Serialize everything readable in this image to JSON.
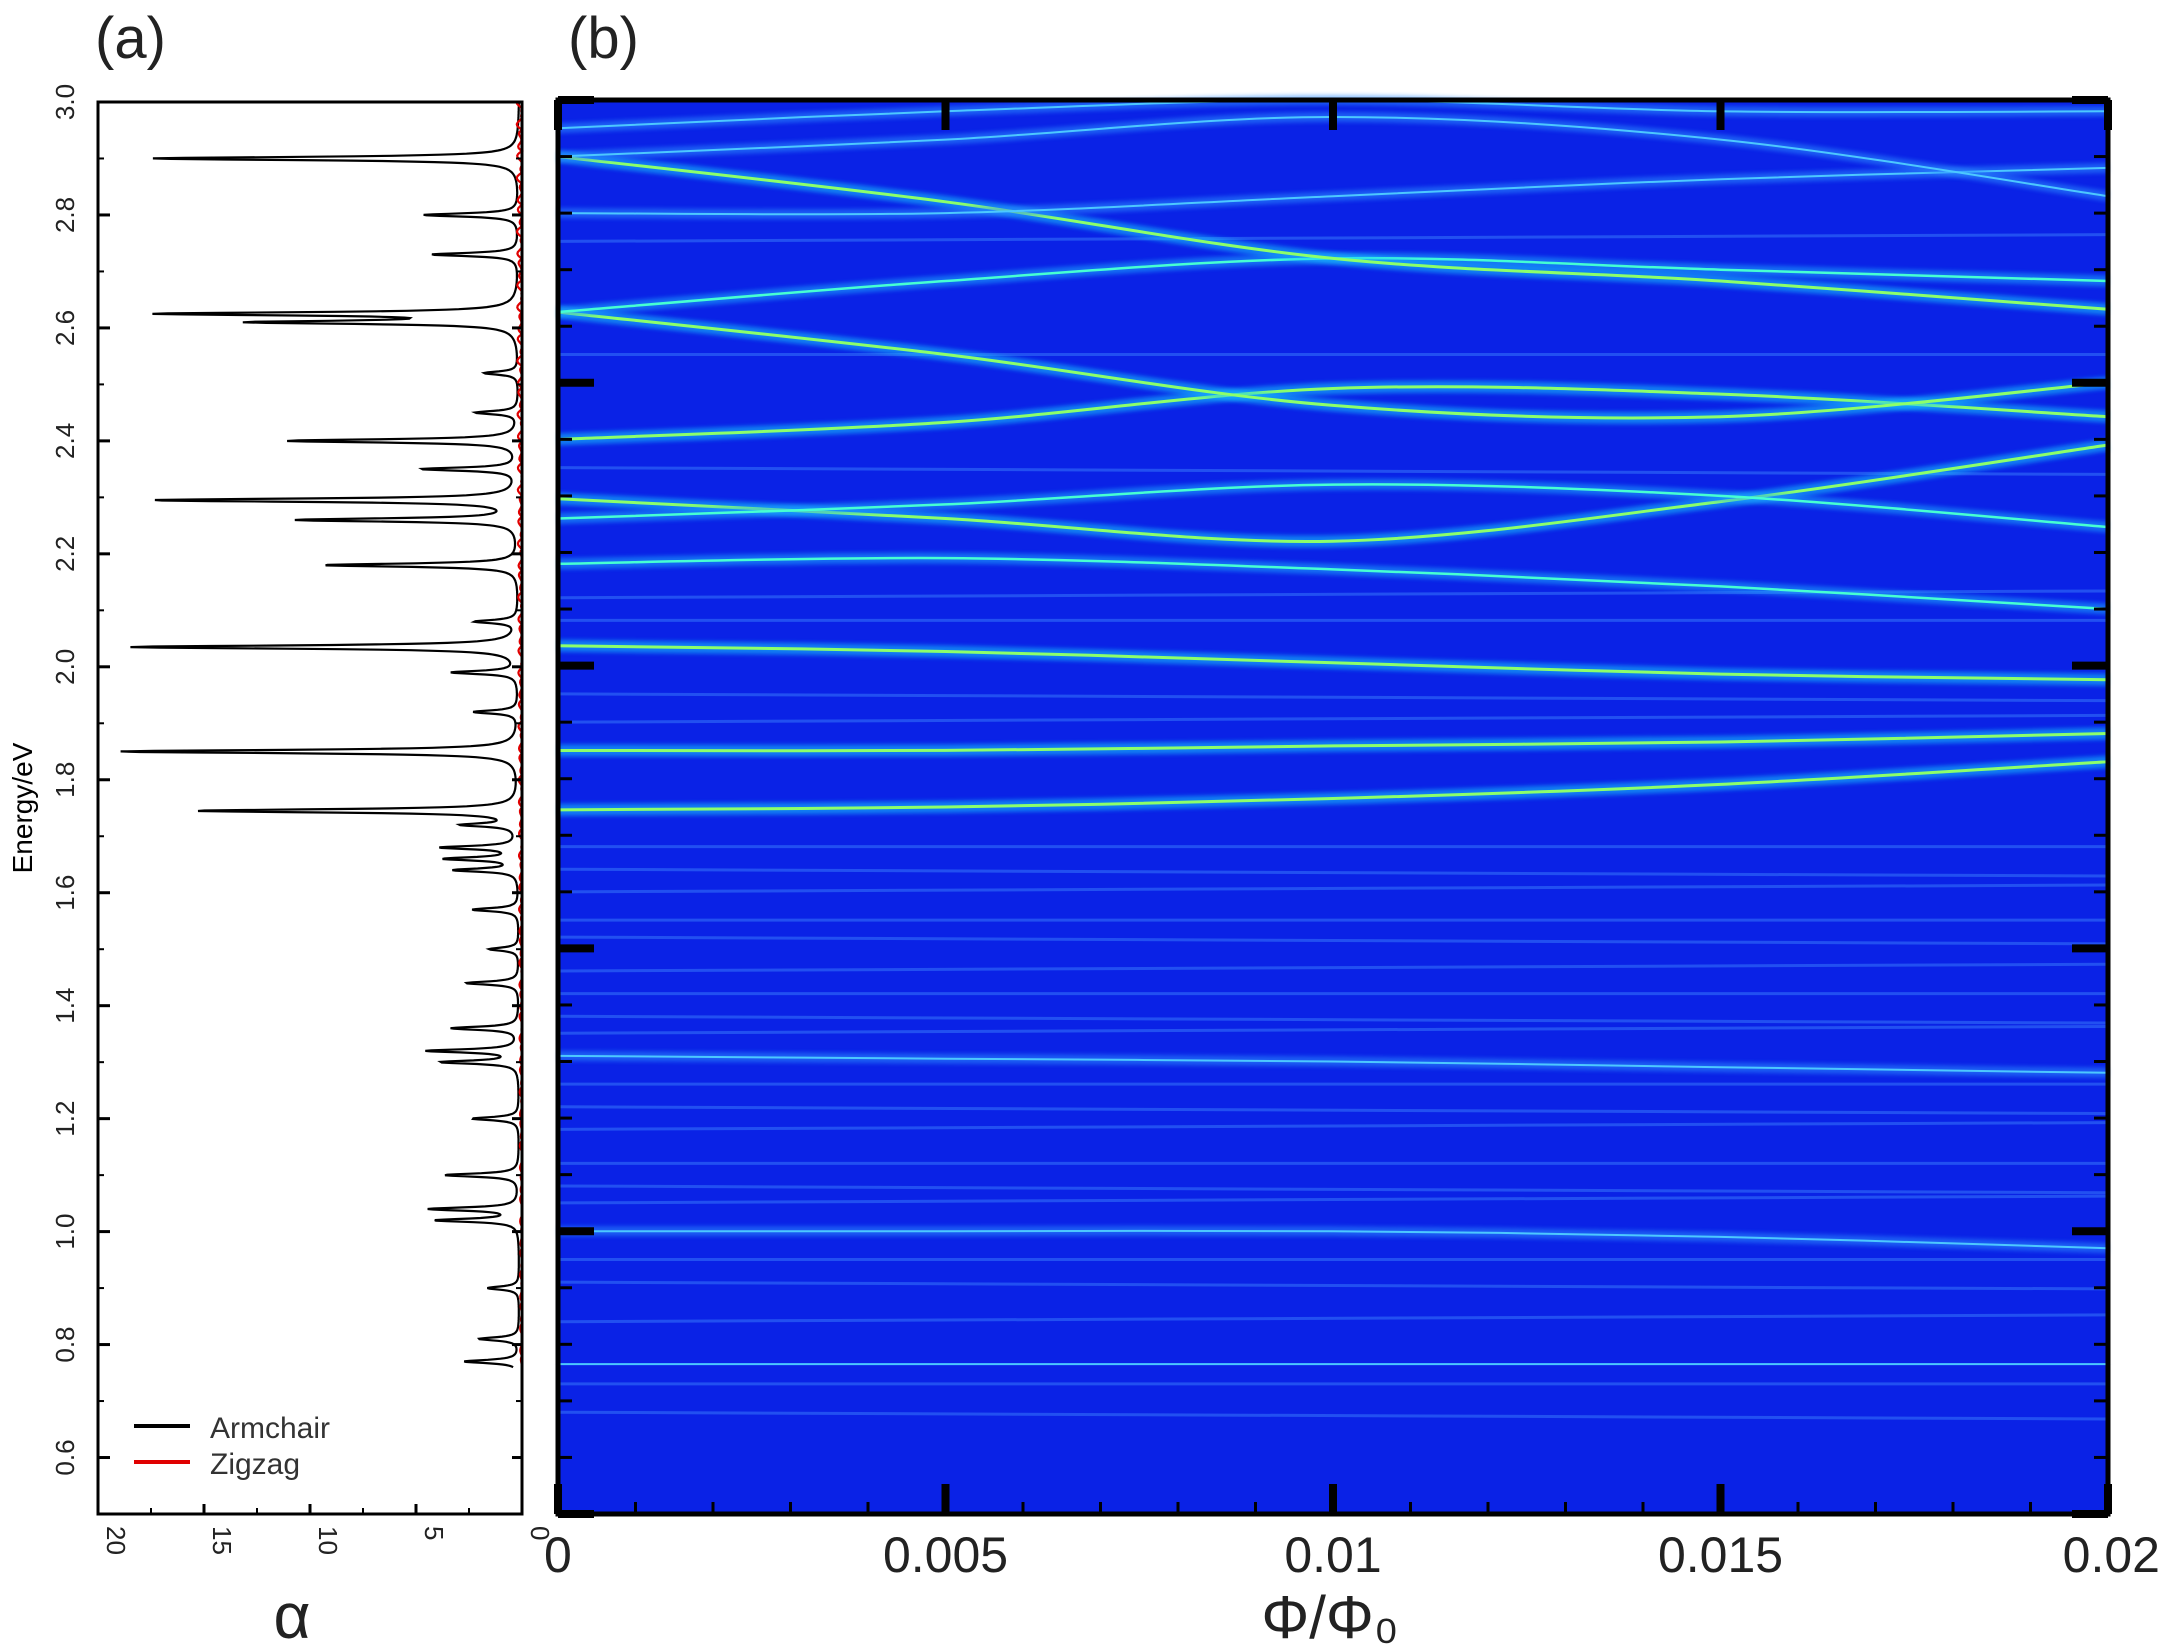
{
  "panels": {
    "a_label": "(a)",
    "b_label": "(b)"
  },
  "chart_data": [
    {
      "type": "line",
      "panel": "(a)",
      "orientation": "rotated",
      "xlabel": "α",
      "ylabel": "Energy/eV",
      "xlim": [
        20,
        0
      ],
      "ylim": [
        0.5,
        3.0
      ],
      "x_ticks": [
        "20",
        "15",
        "10",
        "5",
        "0"
      ],
      "y_ticks": [
        "0.6",
        "0.8",
        "1.0",
        "1.2",
        "1.4",
        "1.6",
        "1.8",
        "2.0",
        "2.2",
        "2.4",
        "2.6",
        "2.8",
        "3.0"
      ],
      "legend_position": "bottom-left",
      "colors": {
        "armchair": "#000000",
        "zigzag": "#e00000"
      },
      "series": [
        {
          "name": "Armchair",
          "color": "#000000",
          "peaks": [
            {
              "energy": 0.77,
              "alpha": 2.6
            },
            {
              "energy": 0.81,
              "alpha": 1.9
            },
            {
              "energy": 0.9,
              "alpha": 1.5
            },
            {
              "energy": 1.02,
              "alpha": 3.9
            },
            {
              "energy": 1.04,
              "alpha": 4.2
            },
            {
              "energy": 1.1,
              "alpha": 3.5
            },
            {
              "energy": 1.2,
              "alpha": 2.2
            },
            {
              "energy": 1.3,
              "alpha": 3.6
            },
            {
              "energy": 1.32,
              "alpha": 4.3
            },
            {
              "energy": 1.36,
              "alpha": 3.2
            },
            {
              "energy": 1.44,
              "alpha": 2.5
            },
            {
              "energy": 1.5,
              "alpha": 1.4
            },
            {
              "energy": 1.57,
              "alpha": 2.2
            },
            {
              "energy": 1.64,
              "alpha": 3.0
            },
            {
              "energy": 1.66,
              "alpha": 3.4
            },
            {
              "energy": 1.68,
              "alpha": 3.6
            },
            {
              "energy": 1.72,
              "alpha": 2.5
            },
            {
              "energy": 1.745,
              "alpha": 15.2
            },
            {
              "energy": 1.85,
              "alpha": 18.8
            },
            {
              "energy": 1.92,
              "alpha": 2.1
            },
            {
              "energy": 1.99,
              "alpha": 3.1
            },
            {
              "energy": 2.035,
              "alpha": 18.3
            },
            {
              "energy": 2.08,
              "alpha": 2.0
            },
            {
              "energy": 2.18,
              "alpha": 9.2
            },
            {
              "energy": 2.26,
              "alpha": 10.4
            },
            {
              "energy": 2.295,
              "alpha": 17.2
            },
            {
              "energy": 2.35,
              "alpha": 4.5
            },
            {
              "energy": 2.4,
              "alpha": 10.9
            },
            {
              "energy": 2.45,
              "alpha": 2.0
            },
            {
              "energy": 2.52,
              "alpha": 1.6
            },
            {
              "energy": 2.61,
              "alpha": 12.2
            },
            {
              "energy": 2.625,
              "alpha": 16.7
            },
            {
              "energy": 2.73,
              "alpha": 4.1
            },
            {
              "energy": 2.8,
              "alpha": 4.5
            },
            {
              "energy": 2.9,
              "alpha": 17.3
            }
          ]
        },
        {
          "name": "Zigzag",
          "color": "#e00000",
          "description_level": "near zero, small noisy fluctuations along full range",
          "max_alpha": 0.4
        }
      ]
    },
    {
      "type": "heatmap",
      "panel": "(b)",
      "xlabel": "Φ/Φ₀",
      "ylabel": "",
      "xlim": [
        0,
        0.02
      ],
      "ylim": [
        0.5,
        3.0
      ],
      "x_ticks": [
        "0",
        "0.005",
        "0.01",
        "0.015",
        "0.02"
      ],
      "colormap": "jet",
      "background_color": "#0a22e6",
      "bright_bands": [
        {
          "flux": [
            0,
            0.005,
            0.01,
            0.015,
            0.02
          ],
          "energy": [
            1.745,
            1.75,
            1.765,
            1.79,
            1.83
          ],
          "intensity": "high"
        },
        {
          "flux": [
            0,
            0.005,
            0.01,
            0.015,
            0.02
          ],
          "energy": [
            1.85,
            1.85,
            1.858,
            1.865,
            1.88
          ],
          "intensity": "high"
        },
        {
          "flux": [
            0,
            0.005,
            0.01,
            0.015,
            0.02
          ],
          "energy": [
            2.035,
            2.025,
            2.005,
            1.985,
            1.975
          ],
          "intensity": "high"
        },
        {
          "flux": [
            0,
            0.005,
            0.01,
            0.015,
            0.02
          ],
          "energy": [
            2.18,
            2.19,
            2.17,
            2.14,
            2.1
          ],
          "intensity": "medium"
        },
        {
          "flux": [
            0,
            0.005,
            0.01,
            0.015,
            0.02
          ],
          "energy": [
            2.295,
            2.26,
            2.22,
            2.29,
            2.39
          ],
          "intensity": "high"
        },
        {
          "flux": [
            0,
            0.005,
            0.01,
            0.015,
            0.02
          ],
          "energy": [
            2.26,
            2.285,
            2.32,
            2.3,
            2.245
          ],
          "intensity": "medium"
        },
        {
          "flux": [
            0,
            0.005,
            0.01,
            0.015,
            0.02
          ],
          "energy": [
            2.4,
            2.43,
            2.49,
            2.48,
            2.44
          ],
          "intensity": "high"
        },
        {
          "flux": [
            0,
            0.005,
            0.01,
            0.015,
            0.02
          ],
          "energy": [
            2.625,
            2.55,
            2.46,
            2.44,
            2.5
          ],
          "intensity": "high"
        },
        {
          "flux": [
            0,
            0.005,
            0.01,
            0.015,
            0.02
          ],
          "energy": [
            2.625,
            2.68,
            2.72,
            2.7,
            2.68
          ],
          "intensity": "medium"
        },
        {
          "flux": [
            0,
            0.005,
            0.01,
            0.015,
            0.02
          ],
          "energy": [
            2.9,
            2.82,
            2.72,
            2.68,
            2.63
          ],
          "intensity": "high"
        },
        {
          "flux": [
            0,
            0.005,
            0.01,
            0.015,
            0.02
          ],
          "energy": [
            2.8,
            2.8,
            2.83,
            2.86,
            2.88
          ],
          "intensity": "low"
        },
        {
          "flux": [
            0,
            0.005,
            0.01,
            0.015,
            0.02
          ],
          "energy": [
            2.9,
            2.93,
            2.97,
            2.93,
            2.83
          ],
          "intensity": "low"
        },
        {
          "flux": [
            0,
            0.005,
            0.01,
            0.015,
            0.02
          ],
          "energy": [
            2.95,
            2.98,
            3.0,
            2.98,
            2.98
          ],
          "intensity": "low"
        },
        {
          "flux": [
            0,
            0.005,
            0.01,
            0.015,
            0.02
          ],
          "energy": [
            1.31,
            1.305,
            1.3,
            1.29,
            1.28
          ],
          "intensity": "low"
        },
        {
          "flux": [
            0,
            0.005,
            0.01,
            0.015,
            0.02
          ],
          "energy": [
            1.0,
            1.0,
            1.0,
            0.99,
            0.97
          ],
          "intensity": "low"
        },
        {
          "flux": [
            0,
            0.005,
            0.01,
            0.015,
            0.02
          ],
          "energy": [
            0.765,
            0.765,
            0.765,
            0.765,
            0.765
          ],
          "intensity": "low"
        }
      ],
      "faint_band_energies": [
        0.68,
        0.73,
        0.84,
        0.91,
        0.95,
        1.05,
        1.08,
        1.12,
        1.18,
        1.22,
        1.26,
        1.35,
        1.38,
        1.42,
        1.46,
        1.52,
        1.55,
        1.6,
        1.64,
        1.68,
        1.9,
        1.95,
        2.08,
        2.12,
        2.35,
        2.55,
        2.75
      ]
    }
  ]
}
